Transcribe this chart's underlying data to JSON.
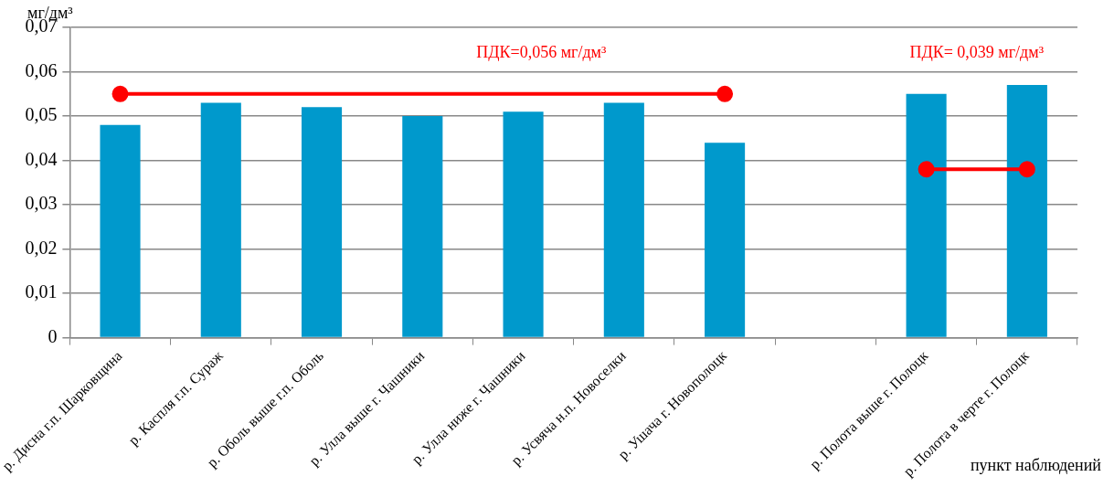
{
  "chart_data": {
    "type": "bar",
    "ylabel": "мг/дм³",
    "xlabel": "пункт наблюдений",
    "categories": [
      "р. Дисна г.п. Шарковщина",
      "р. Каспля г.п. Сураж",
      "р. Оболь выше г.п. Оболь",
      "р. Улла выше г. Чашники",
      "р. Улла ниже г. Чашники",
      "р. Усвяча н.п. Новоселки",
      "р. Ушача г. Новополоцк",
      null,
      "р. Полота выше г. Полоцк",
      "р. Полота в черте г. Полоцк"
    ],
    "series": [
      {
        "color": "#0099cc",
        "values": [
          0.048,
          0.053,
          0.052,
          0.05,
          0.051,
          0.053,
          0.044,
          null,
          0.055,
          0.057
        ]
      },
      {
        "type": "line",
        "color": "#ff0000",
        "values": [
          0.055,
          null,
          null,
          null,
          null,
          null,
          0.055,
          null,
          null,
          null
        ]
      },
      {
        "type": "line",
        "color": "#ff0000",
        "values": [
          null,
          null,
          null,
          null,
          null,
          null,
          null,
          null,
          0.038,
          0.038
        ]
      }
    ],
    "annotations": [
      "ПДК=0,056 мг/дм³",
      "ПДК= 0,039 мг/дм³"
    ],
    "ylim": [
      0,
      0.07
    ],
    "yticks": [
      0,
      {
        "value": 0.01,
        "label": "0,01"
      },
      {
        "value": 0.02,
        "label": "0,02"
      },
      {
        "value": 0.03,
        "label": "0,03"
      },
      {
        "value": 0.04,
        "label": "0,04"
      },
      {
        "value": 0.05,
        "label": "0,05"
      },
      {
        "value": 0.06,
        "label": "0,06"
      },
      {
        "value": 0.07,
        "label": "0,07"
      }
    ],
    "grid": "y",
    "marker": "circle"
  }
}
